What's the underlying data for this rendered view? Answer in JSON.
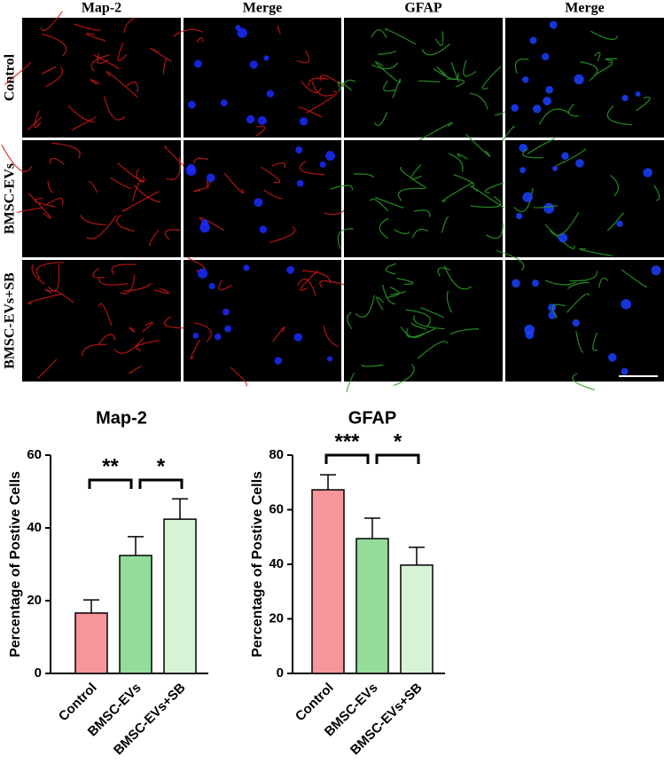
{
  "panel": {
    "column_headers": [
      "Map-2",
      "Merge",
      "GFAP",
      "Merge"
    ],
    "row_labels": [
      "Control",
      "BMSC-EVs",
      "BMSC-EVs+SB"
    ]
  },
  "chart_data": [
    {
      "type": "bar",
      "title": "Map-2",
      "y_label": "Percentage of Postive Cells",
      "categories": [
        "Control",
        "BMSC-EVs",
        "BMSC-EVs+SB"
      ],
      "values": [
        16.6,
        32.4,
        42.4
      ],
      "errors": [
        3.6,
        5.2,
        5.6
      ],
      "colors": [
        "#f4969a",
        "#93dd98",
        "#d6f3d6"
      ],
      "ylim": [
        0,
        60
      ],
      "yticks": [
        0,
        20,
        40,
        60
      ],
      "significance": [
        {
          "between": [
            "Control",
            "BMSC-EVs"
          ],
          "label": "**"
        },
        {
          "between": [
            "BMSC-EVs",
            "BMSC-EVs+SB"
          ],
          "label": "*"
        }
      ]
    },
    {
      "type": "bar",
      "title": "GFAP",
      "y_label": "Percentage of Postive Cells",
      "categories": [
        "Control",
        "BMSC-EVs",
        "BMSC-EVs+SB"
      ],
      "values": [
        67.3,
        49.4,
        39.7
      ],
      "errors": [
        5.5,
        7.5,
        6.5
      ],
      "colors": [
        "#f4969a",
        "#93dd98",
        "#d6f3d6"
      ],
      "ylim": [
        0,
        80
      ],
      "yticks": [
        0,
        20,
        40,
        60,
        80
      ],
      "significance": [
        {
          "between": [
            "Control",
            "BMSC-EVs"
          ],
          "label": "***"
        },
        {
          "between": [
            "BMSC-EVs",
            "BMSC-EVs+SB"
          ],
          "label": "*"
        }
      ]
    }
  ]
}
